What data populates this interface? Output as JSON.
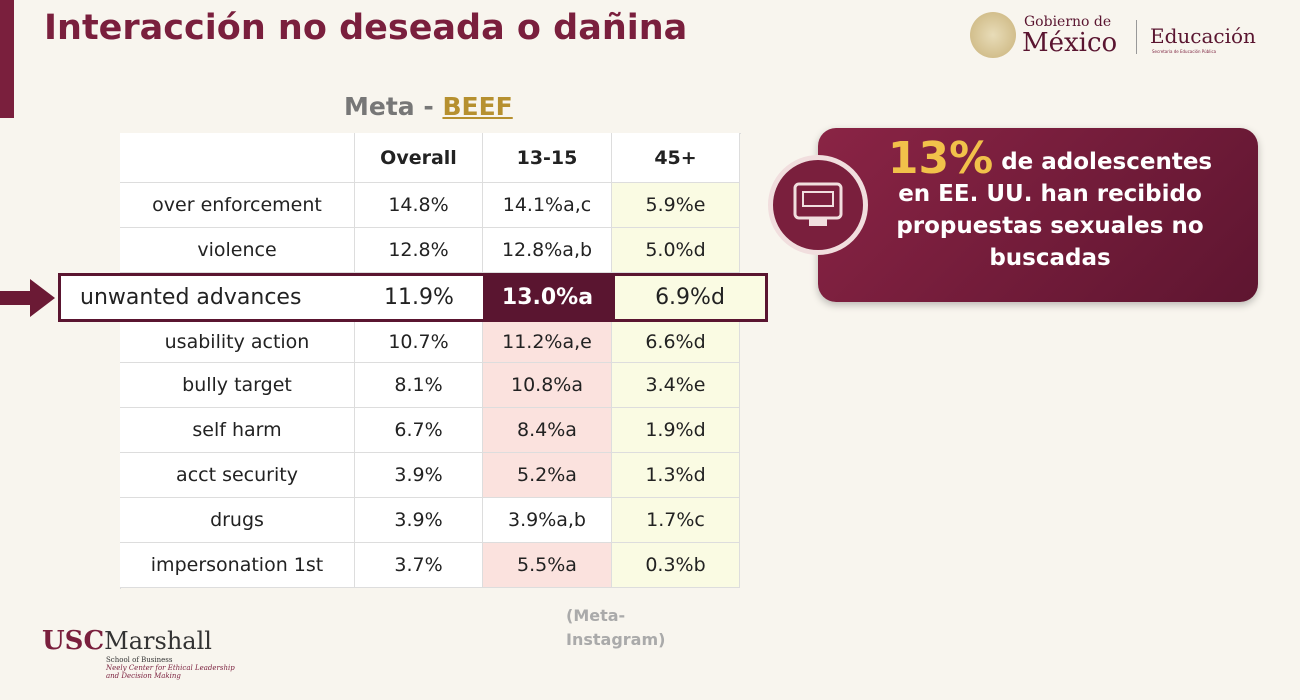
{
  "header": {
    "title": "Interacción no deseada o dañina",
    "logo": {
      "gobierno": "Gobierno de",
      "mexico": "México",
      "educacion": "Educación",
      "sep": "Secretaría de Educación Pública"
    }
  },
  "table": {
    "caption": {
      "prefix": "Meta -",
      "link": "BEEF"
    },
    "columns": [
      "Overall",
      "13-15",
      "45+"
    ],
    "highlight_row": 2,
    "rows": [
      [
        "over enforcement",
        "14.8%",
        "14.1%a,c",
        "5.9%e"
      ],
      [
        "violence",
        "12.8%",
        "12.8%a,b",
        "5.0%d"
      ],
      [
        "unwanted advances",
        "11.9%",
        "13.0%a",
        "6.9%d"
      ],
      [
        "usability action",
        "10.7%",
        "11.2%a,e",
        "6.6%d"
      ],
      [
        "bully target",
        "8.1%",
        "10.8%a",
        "3.4%e"
      ],
      [
        "self harm",
        "6.7%",
        "8.4%a",
        "1.9%d"
      ],
      [
        "acct security",
        "3.9%",
        "5.2%a",
        "1.3%d"
      ],
      [
        "drugs",
        "3.9%",
        "3.9%a,b",
        "1.7%c"
      ],
      [
        "impersonation 1st",
        "3.7%",
        "5.5%a",
        "0.3%b"
      ]
    ]
  },
  "callout": {
    "figure": "13%",
    "lines": [
      "de adolescentes",
      "en EE. UU. han recibido",
      "propuestas sexuales no",
      "buscadas"
    ]
  },
  "source": [
    "(Meta-",
    "Instagram)"
  ],
  "footer": {
    "usc": "USC",
    "marshall": "Marshall",
    "school": "School of Business",
    "center": "Neely Center for Ethical Leadership",
    "center2": "and Decision Making"
  }
}
